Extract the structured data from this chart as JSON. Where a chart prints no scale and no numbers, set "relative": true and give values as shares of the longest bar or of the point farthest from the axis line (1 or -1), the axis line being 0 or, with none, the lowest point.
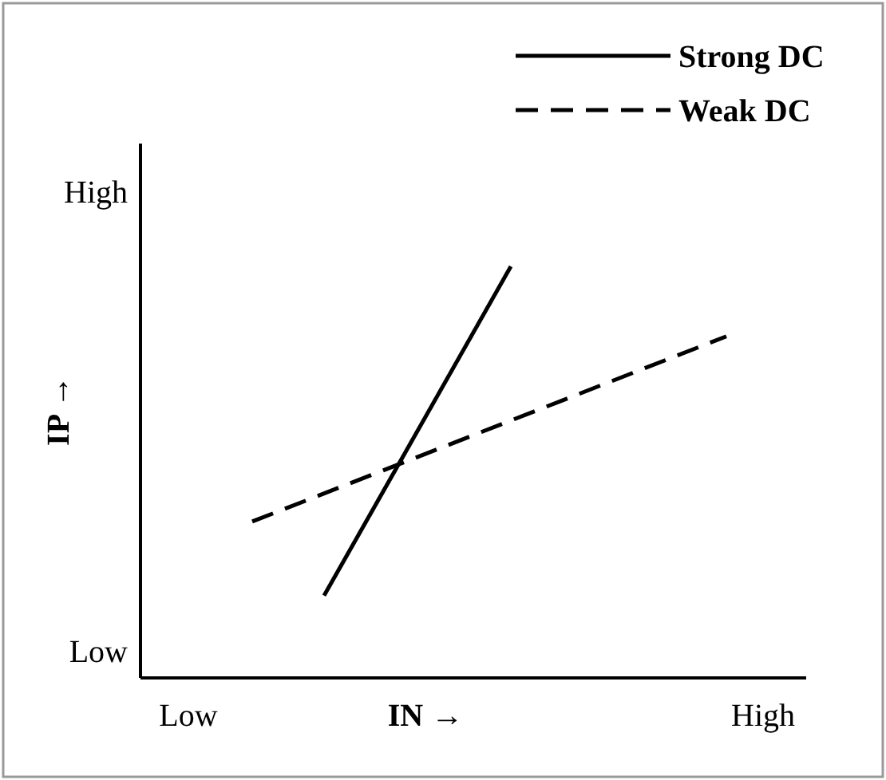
{
  "chart_data": {
    "type": "line",
    "xlabel": "IN →",
    "ylabel": "IP →",
    "relative": true,
    "annotations": [
      "High",
      "Low",
      "Low",
      "High"
    ],
    "legend": "top right",
    "categories": [
      null,
      null,
      null,
      null,
      null,
      null,
      null,
      null,
      null,
      null,
      null,
      null,
      null,
      null,
      null,
      null,
      null,
      null,
      null,
      null,
      null,
      null,
      null,
      null,
      null,
      null,
      null,
      null,
      null,
      null,
      null,
      null,
      null,
      null,
      null,
      null,
      null,
      null,
      null,
      null,
      null,
      null,
      null,
      null,
      null,
      null
    ],
    "series": [
      {
        "name": "Strong DC",
        "color": "#000000",
        "line_style": "solid",
        "values": [
          null,
          null,
          null,
          null,
          null,
          null,
          null,
          null,
          null,
          null,
          null,
          null,
          0.2,
          null,
          null,
          null,
          null,
          null,
          null,
          null,
          null,
          null,
          null,
          null,
          null,
          1,
          null,
          null,
          null,
          null,
          null,
          null,
          null,
          null,
          null,
          null,
          null,
          null,
          null,
          null,
          null,
          null,
          null,
          null,
          null,
          null
        ]
      },
      {
        "name": "Weak DC",
        "color": "#000000",
        "line_style": "dashed",
        "values": [
          null,
          null,
          null,
          null,
          null,
          null,
          null,
          0.38,
          null,
          null,
          null,
          null,
          null,
          null,
          null,
          null,
          null,
          null,
          null,
          null,
          null,
          null,
          null,
          null,
          null,
          null,
          null,
          null,
          null,
          null,
          null,
          null,
          null,
          null,
          null,
          null,
          null,
          null,
          null,
          null,
          0.83,
          null,
          null,
          null,
          null,
          null
        ]
      }
    ]
  }
}
